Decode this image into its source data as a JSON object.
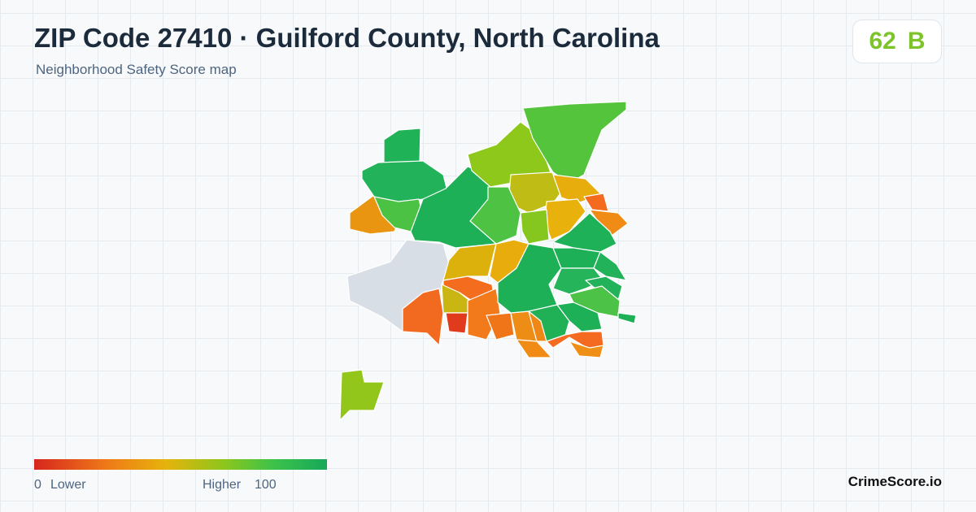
{
  "header": {
    "title": "ZIP Code 27410 · Guilford County, North Carolina",
    "subtitle": "Neighborhood Safety Score map"
  },
  "score": {
    "value": "62",
    "grade": "B"
  },
  "legend": {
    "min": "0",
    "min_label": "Lower",
    "max_label": "Higher",
    "max": "100"
  },
  "footer": {
    "brand": "CrimeScore.io"
  }
}
